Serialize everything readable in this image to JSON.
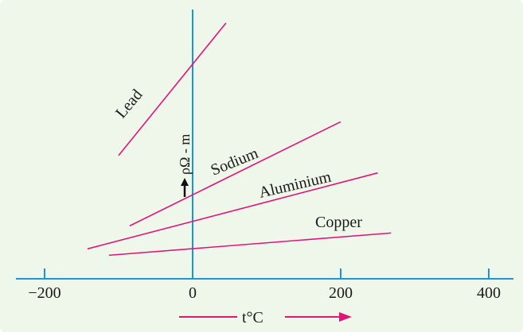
{
  "chart_data": {
    "type": "line",
    "title": "",
    "x_axis": {
      "label": "t°C",
      "ticks": [
        {
          "value": -200,
          "label": "−200"
        },
        {
          "value": 0,
          "label": "0"
        },
        {
          "value": 200,
          "label": "200"
        },
        {
          "value": 400,
          "label": "400"
        }
      ],
      "xlim": [
        -240,
        430
      ]
    },
    "y_axis": {
      "label": "ρΩ - m",
      "ylim": [
        0,
        1
      ]
    },
    "series": [
      {
        "name": "Lead",
        "x": [
          -100,
          45
        ],
        "y": [
          0.482,
          1.0
        ],
        "color": "#e0157a"
      },
      {
        "name": "Sodium",
        "x": [
          -85,
          200
        ],
        "y": [
          0.207,
          0.614
        ],
        "color": "#e0157a"
      },
      {
        "name": "Aluminium",
        "x": [
          -142,
          250
        ],
        "y": [
          0.117,
          0.414
        ],
        "color": "#e0157a"
      },
      {
        "name": "Copper",
        "x": [
          -113,
          268
        ],
        "y": [
          0.092,
          0.179
        ],
        "color": "#e0157a"
      }
    ],
    "colors": {
      "background": "#eef7ea",
      "axis": "#1a96d8",
      "lines": "#e0157a"
    }
  }
}
